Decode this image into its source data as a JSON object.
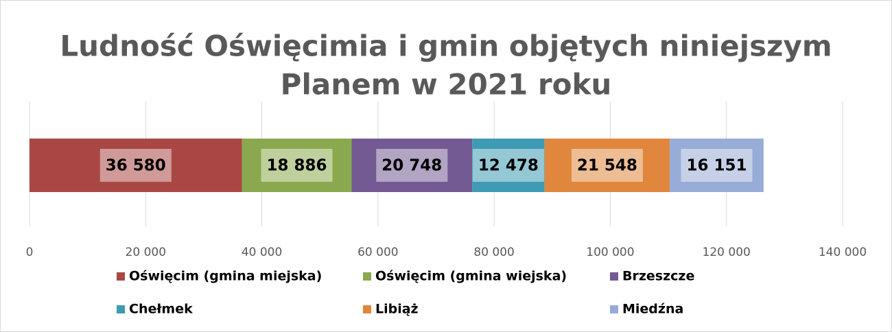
{
  "chart_data": {
    "type": "stacked_bar_horizontal",
    "title": [
      "Ludność Oświęcimia i gmin objętych niniejszym",
      "Planem w 2021 roku"
    ],
    "series": [
      {
        "name": "Oświęcim (gmina miejska)",
        "color": "#a94744",
        "values": [
          36580
        ],
        "value_labels": [
          "36 580"
        ]
      },
      {
        "name": "Oświęcim (gmina wiejska)",
        "color": "#8aa94e",
        "values": [
          18886
        ],
        "value_labels": [
          "18 886"
        ]
      },
      {
        "name": "Brzeszcze",
        "color": "#735a93",
        "values": [
          20748
        ],
        "value_labels": [
          "20 748"
        ]
      },
      {
        "name": "Chełmek",
        "color": "#3e9bb3",
        "values": [
          12478
        ],
        "value_labels": [
          "12 478"
        ]
      },
      {
        "name": "Libiąż",
        "color": "#e0873d",
        "values": [
          21548
        ],
        "value_labels": [
          "21 548"
        ]
      },
      {
        "name": "Miedźna",
        "color": "#97acd6",
        "values": [
          16151
        ],
        "value_labels": [
          "16 151"
        ]
      }
    ],
    "xlim": [
      0,
      140000
    ],
    "xticks": [
      0,
      {
        "value": 20000,
        "label": "20 000"
      },
      {
        "value": 40000,
        "label": "40 000"
      },
      {
        "value": 60000,
        "label": "60 000"
      },
      {
        "value": 80000,
        "label": "80 000"
      },
      {
        "value": 100000,
        "label": "100 000"
      },
      {
        "value": 120000,
        "label": "120 000"
      },
      {
        "value": 140000,
        "label": "140 000"
      }
    ],
    "grid": true,
    "legend": "bottom"
  }
}
